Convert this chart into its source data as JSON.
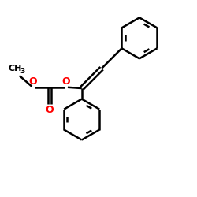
{
  "bg_color": "#ffffff",
  "bond_color": "#000000",
  "o_color": "#ff0000",
  "lw": 1.8,
  "figsize": [
    2.5,
    2.5
  ],
  "dpi": 100,
  "xlim": [
    0,
    10
  ],
  "ylim": [
    0,
    10
  ]
}
